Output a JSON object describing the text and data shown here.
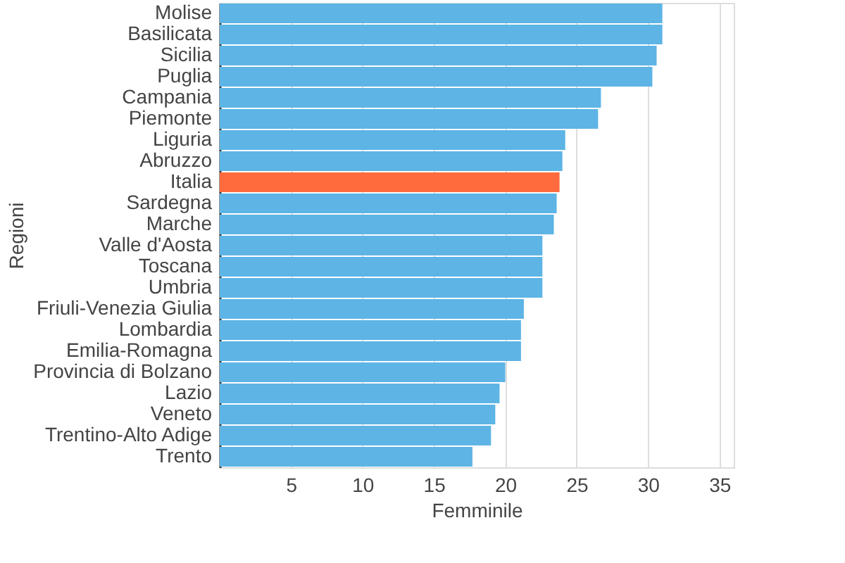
{
  "chart_data": {
    "type": "bar",
    "orientation": "horizontal",
    "xlabel": "Femminile",
    "ylabel": "Regioni",
    "categories": [
      "Molise",
      "Basilicata",
      "Sicilia",
      "Puglia",
      "Campania",
      "Piemonte",
      "Liguria",
      "Abruzzo",
      "Italia",
      "Sardegna",
      "Marche",
      "Valle d'Aosta",
      "Toscana",
      "Umbria",
      "Friuli-Venezia Giulia",
      "Lombardia",
      "Emilia-Romagna",
      "Provincia di Bolzano",
      "Lazio",
      "Veneto",
      "Trentino-Alto Adige",
      "Trento"
    ],
    "values": [
      31.0,
      31.0,
      30.6,
      30.3,
      26.7,
      26.5,
      24.2,
      24.0,
      23.8,
      23.6,
      23.4,
      22.6,
      22.6,
      22.6,
      21.3,
      21.1,
      21.1,
      20.0,
      19.6,
      19.3,
      19.0,
      17.7
    ],
    "colors": [
      "#5db4e5",
      "#5db4e5",
      "#5db4e5",
      "#5db4e5",
      "#5db4e5",
      "#5db4e5",
      "#5db4e5",
      "#5db4e5",
      "#ff6b3d",
      "#5db4e5",
      "#5db4e5",
      "#5db4e5",
      "#5db4e5",
      "#5db4e5",
      "#5db4e5",
      "#5db4e5",
      "#5db4e5",
      "#5db4e5",
      "#5db4e5",
      "#5db4e5",
      "#5db4e5",
      "#5db4e5"
    ],
    "xlim": [
      0,
      36
    ],
    "xticks": [
      5,
      10,
      15,
      20,
      25,
      30,
      35
    ],
    "grid": "x"
  }
}
